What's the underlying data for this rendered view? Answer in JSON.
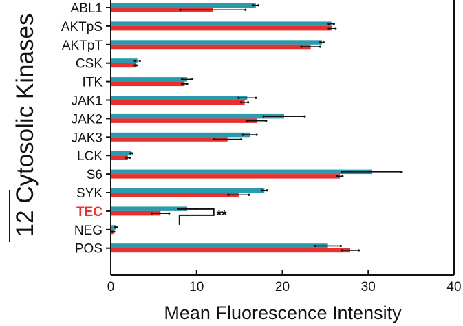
{
  "chart_data": {
    "type": "bar",
    "orientation": "horizontal",
    "ylabel": "12 Cytosolic Kinases",
    "xlabel": "Mean Fluorescence Intensity",
    "xlim": [
      0,
      40
    ],
    "xticks": [
      "0",
      "10",
      "20",
      "30",
      "40"
    ],
    "categories": [
      "ABL1",
      "AKTpS",
      "AKTpT",
      "CSK",
      "ITK",
      "JAK1",
      "JAK2",
      "JAK3",
      "LCK",
      "S6",
      "SYK",
      "TEC",
      "NEG",
      "POS"
    ],
    "highlight_category": "TEC",
    "series": [
      {
        "color": "#2b9aad",
        "values": [
          16.9,
          25.7,
          24.6,
          3.1,
          8.9,
          15.9,
          20.2,
          16.2,
          2.4,
          30.4,
          17.9,
          8.9,
          0.6,
          25.3
        ],
        "errors": [
          0.3,
          0.3,
          0.2,
          0.3,
          0.6,
          1.0,
          2.4,
          0.8,
          0.1,
          3.5,
          0.3,
          1.0,
          0.1,
          1.5
        ]
      },
      {
        "color": "#e8312e",
        "values": [
          11.9,
          25.8,
          23.3,
          2.9,
          8.6,
          15.6,
          17.0,
          13.6,
          2.0,
          26.7,
          14.9,
          5.8,
          0.3,
          27.9
        ],
        "errors": [
          3.8,
          0.4,
          1.1,
          0.1,
          0.3,
          0.4,
          1.1,
          1.6,
          0.2,
          0.3,
          1.2,
          1.0,
          0.1,
          1.0
        ]
      }
    ],
    "annotations": [
      "**"
    ],
    "grid": false,
    "legend": "none"
  }
}
